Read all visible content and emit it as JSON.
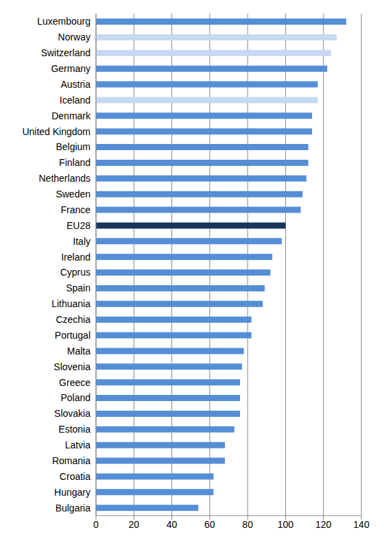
{
  "chart_data": {
    "type": "bar",
    "orientation": "horizontal",
    "categories": [
      "Bulgaria",
      "Hungary",
      "Croatia",
      "Romania",
      "Latvia",
      "Estonia",
      "Slovakia",
      "Poland",
      "Greece",
      "Slovenia",
      "Malta",
      "Portugal",
      "Czechia",
      "Lithuania",
      "Spain",
      "Cyprus",
      "Ireland",
      "Italy",
      "EU28",
      "France",
      "Sweden",
      "Netherlands",
      "Finland",
      "Belgium",
      "United Kingdom",
      "Denmark",
      "Iceland",
      "Austria",
      "Germany",
      "Switzerland",
      "Norway",
      "Luxembourg"
    ],
    "values": [
      54,
      62,
      62,
      68,
      68,
      73,
      76,
      76,
      76,
      77,
      78,
      82,
      82,
      88,
      89,
      92,
      93,
      98,
      100,
      108,
      109,
      111,
      112,
      112,
      114,
      114,
      117,
      117,
      122,
      124,
      127,
      132
    ],
    "colors": [
      "#558ed5",
      "#558ed5",
      "#558ed5",
      "#558ed5",
      "#558ed5",
      "#558ed5",
      "#558ed5",
      "#558ed5",
      "#558ed5",
      "#558ed5",
      "#558ed5",
      "#558ed5",
      "#558ed5",
      "#558ed5",
      "#558ed5",
      "#558ed5",
      "#558ed5",
      "#558ed5",
      "#17375e",
      "#558ed5",
      "#558ed5",
      "#558ed5",
      "#558ed5",
      "#558ed5",
      "#558ed5",
      "#558ed5",
      "#c6d9f1",
      "#558ed5",
      "#558ed5",
      "#c6d9f1",
      "#c6d9f1",
      "#558ed5"
    ],
    "xlim": [
      0,
      140
    ],
    "xticks": [
      0,
      20,
      40,
      60,
      80,
      100,
      120,
      140
    ],
    "grid": true
  }
}
